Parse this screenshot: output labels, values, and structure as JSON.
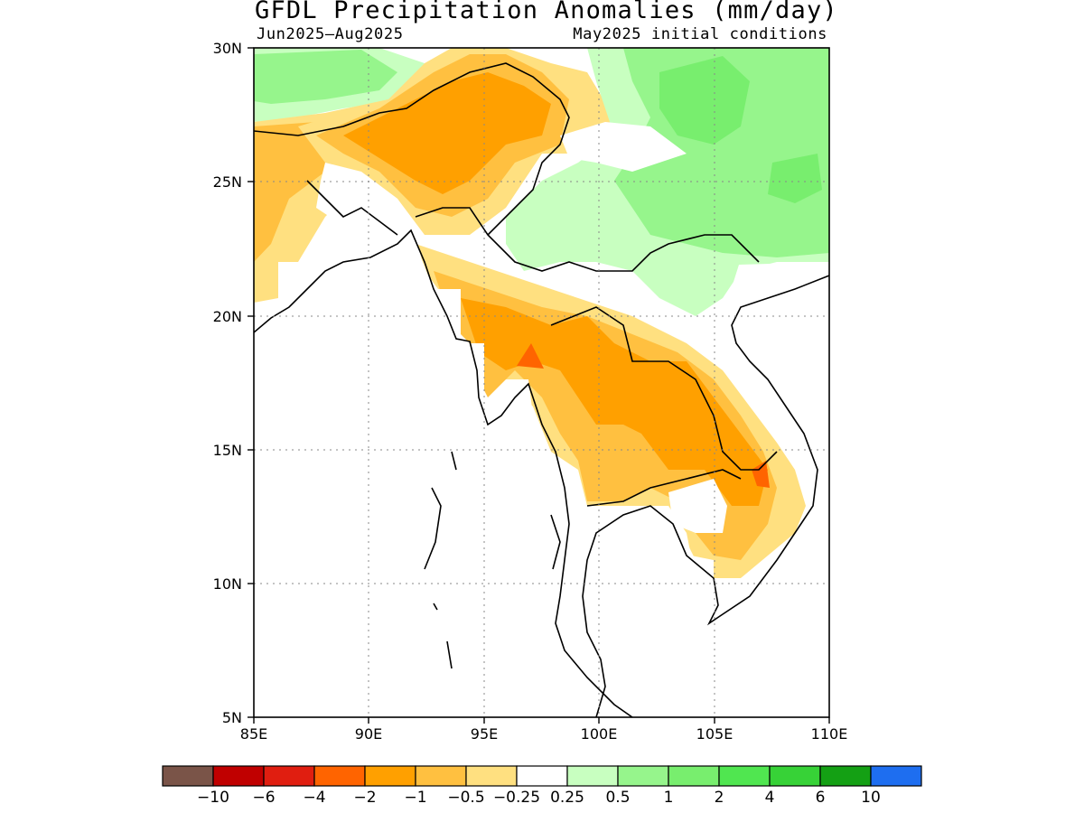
{
  "title": "GFDL Precipitation Anomalies (mm/day)",
  "subtitle_left": "Jun2025–Aug2025",
  "subtitle_right": "May2025 initial conditions",
  "axes": {
    "x_ticks": [
      "85E",
      "90E",
      "95E",
      "100E",
      "105E",
      "110E"
    ],
    "y_ticks": [
      "30N",
      "25N",
      "20N",
      "15N",
      "10N",
      "5N"
    ],
    "lon_range": [
      85,
      110
    ],
    "lat_range": [
      5,
      30
    ],
    "grid": "dotted"
  },
  "colorbar": {
    "colors": [
      "#7a5448",
      "#c00000",
      "#e01e10",
      "#ff6400",
      "#ffa000",
      "#ffc040",
      "#ffe080",
      "#ffffff",
      "#c8ffc0",
      "#96f58c",
      "#78ee6e",
      "#50e650",
      "#37d237",
      "#14a014",
      "#1e6ef0"
    ],
    "labels": [
      "-10",
      "-6",
      "-4",
      "-2",
      "-1",
      "-0.5",
      "-0.25",
      "0.25",
      "0.5",
      "1",
      "2",
      "4",
      "6",
      "10"
    ]
  },
  "colors": {
    "dry_strong": "#ffa000",
    "dry_moderate": "#ffc040",
    "dry_weak": "#ffe080",
    "wet_weak": "#c8ffc0",
    "wet_moderate": "#96f58c",
    "wet_strong": "#78ee6e",
    "dry_extreme": "#ff6400"
  }
}
